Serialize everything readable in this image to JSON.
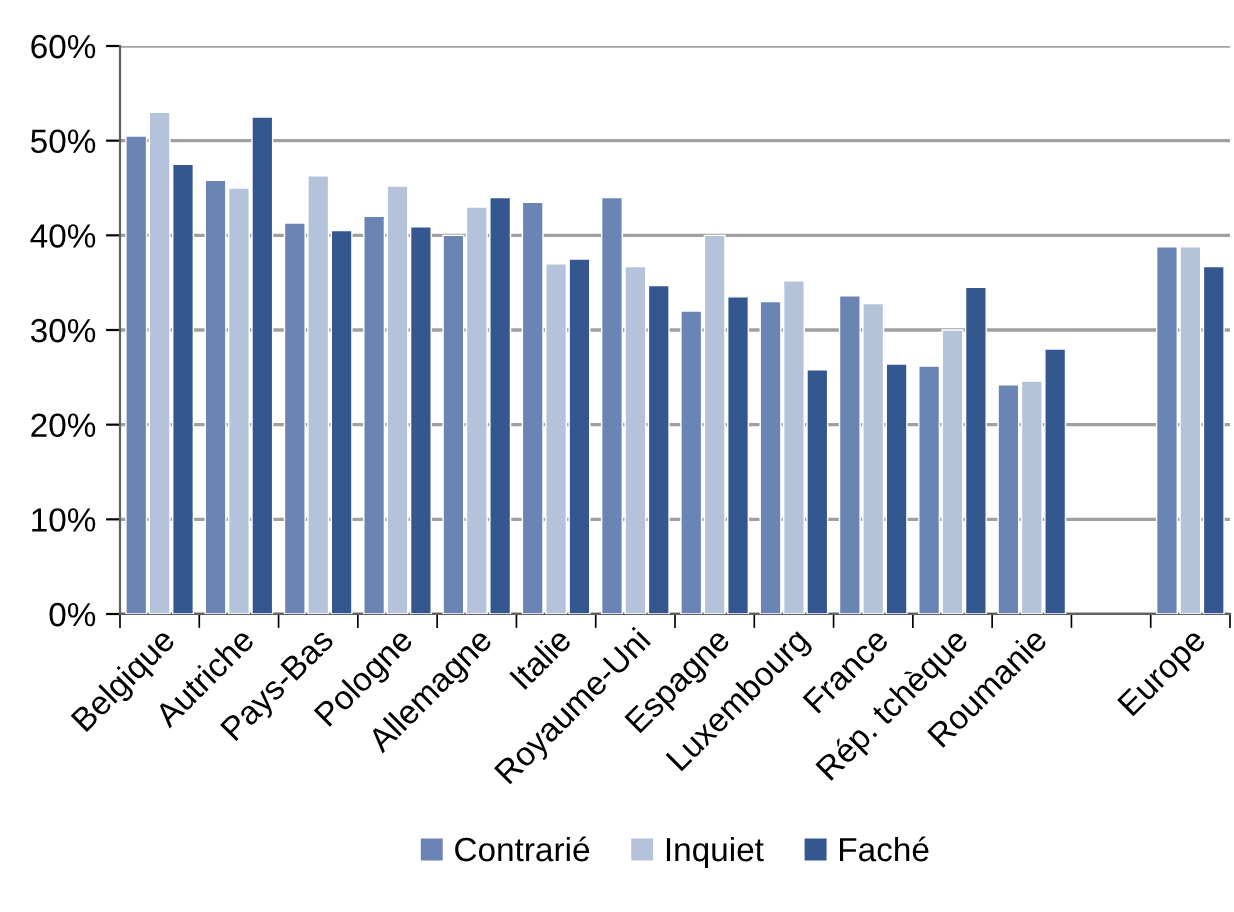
{
  "chart_data": {
    "type": "bar",
    "categories": [
      "Belgique",
      "Autriche",
      "Pays-Bas",
      "Pologne",
      "Allemagne",
      "Italie",
      "Royaume-Uni",
      "Espagne",
      "Luxembourg",
      "France",
      "Rép. tchèque",
      "Roumanie",
      null,
      "Europe"
    ],
    "series": [
      {
        "name": "Contrarié",
        "color": "#6a84b4",
        "values": [
          50.5,
          45.8,
          41.3,
          42,
          40,
          43.5,
          44,
          32,
          33,
          33.6,
          26.2,
          24.2,
          null,
          38.8
        ]
      },
      {
        "name": "Inquiet",
        "color": "#b4c2da",
        "values": [
          53,
          45,
          46.3,
          45.2,
          43,
          37,
          36.7,
          40,
          35.2,
          32.8,
          30,
          24.6,
          null,
          38.8
        ]
      },
      {
        "name": "Faché",
        "color": "#34578f",
        "values": [
          47.5,
          52.5,
          40.5,
          40.9,
          44,
          37.5,
          34.7,
          33.5,
          25.8,
          26.4,
          34.5,
          28,
          null,
          36.7
        ]
      }
    ],
    "ylim": [
      0,
      60
    ],
    "yticks": [
      {
        "value": 0,
        "label": "0%"
      },
      {
        "value": 10,
        "label": "10%"
      },
      {
        "value": 20,
        "label": "20%"
      },
      {
        "value": 30,
        "label": "30%"
      },
      {
        "value": 40,
        "label": "40%"
      },
      {
        "value": 50,
        "label": "50%"
      },
      {
        "value": 60,
        "label": "60%"
      }
    ],
    "grid": "y",
    "legend": "bottom"
  }
}
